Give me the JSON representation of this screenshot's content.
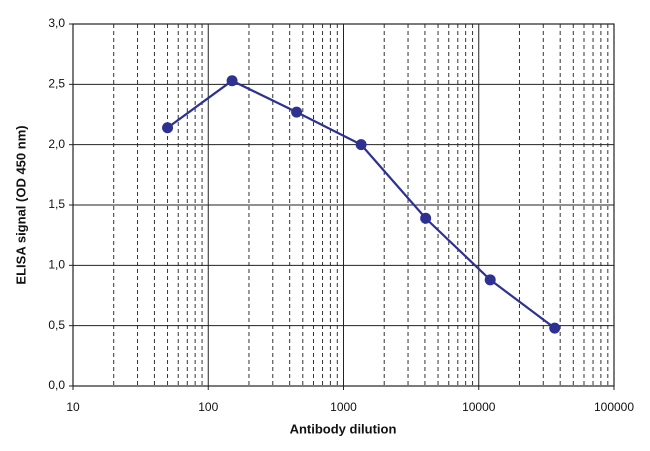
{
  "chart_data": {
    "type": "line",
    "xlabel": "Antibody dilution",
    "ylabel": "ELISA signal (OD 450 nm)",
    "x": [
      50,
      150,
      450,
      1350,
      4050,
      12150,
      36450
    ],
    "values": [
      2.14,
      2.53,
      2.27,
      2.0,
      1.39,
      0.88,
      0.48
    ],
    "color": "#2e3192",
    "xscale": "log",
    "xlim": [
      10,
      100000
    ],
    "xticks": [
      10,
      100,
      1000,
      10000,
      100000
    ],
    "ylim": [
      0,
      3
    ],
    "yticks": [
      {
        "value": 0,
        "label": "0,0"
      },
      {
        "value": 0.5,
        "label": "0,5"
      },
      {
        "value": 1,
        "label": "1,0"
      },
      {
        "value": 1.5,
        "label": "1,5"
      },
      {
        "value": 2,
        "label": "2,0"
      },
      {
        "value": 2.5,
        "label": "2,5"
      },
      {
        "value": 3,
        "label": "3,0"
      }
    ],
    "grid": true,
    "minor_grid": true
  }
}
